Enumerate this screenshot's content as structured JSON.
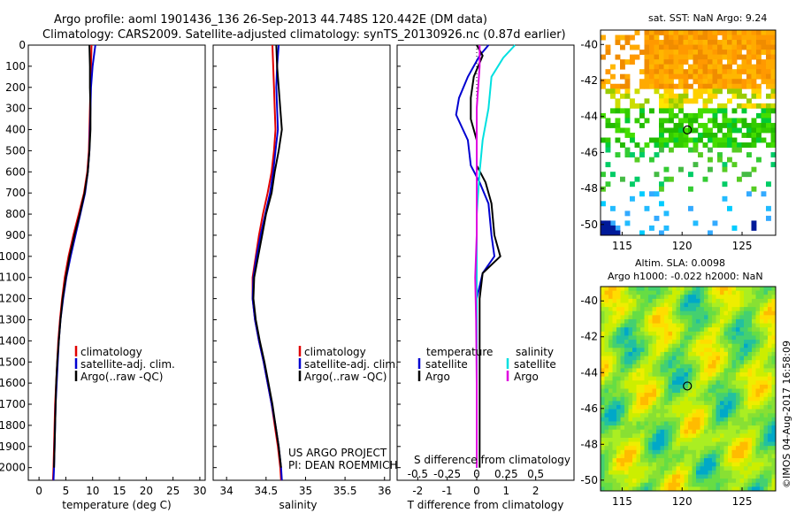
{
  "header": {
    "line1": "Argo profile: aoml 1901436_136 26-Sep-2013 44.748S 120.442E (DM data)",
    "line2": "Climatology: CARS2009. Satellite-adjusted climatology: synTS_20130926.nc (0.87d earlier)"
  },
  "depth_ticks": [
    "0",
    "100",
    "200",
    "300",
    "400",
    "500",
    "600",
    "700",
    "800",
    "900",
    "1000",
    "1100",
    "1200",
    "1300",
    "1400",
    "1500",
    "1600",
    "1700",
    "1800",
    "1900",
    "2000"
  ],
  "project": {
    "line1": "US ARGO PROJECT",
    "line2": "PI: DEAN ROEMMICH"
  },
  "timestamp": "©IMOS 04-Aug-2017 16:58:09",
  "colors": {
    "climatology": "#e00000",
    "satellite": "#0000d0",
    "argo": "#000000",
    "sal_satellite": "#00e0e0",
    "sal_argo": "#e000e0"
  },
  "chart_data": [
    {
      "type": "line",
      "name": "temperature-profile",
      "xlabel": "temperature (deg C)",
      "x_ticks": [
        "0",
        "5",
        "10",
        "15",
        "20",
        "25",
        "30"
      ],
      "xlim": [
        -2,
        31
      ],
      "ylim": [
        2060,
        0
      ],
      "legend": [
        "climatology",
        "satellite-adj. clim.",
        "Argo(..raw -QC)"
      ],
      "series": [
        {
          "name": "climatology",
          "points": [
            [
              9.8,
              0
            ],
            [
              9.7,
              100
            ],
            [
              9.6,
              200
            ],
            [
              9.5,
              300
            ],
            [
              9.4,
              400
            ],
            [
              9.3,
              500
            ],
            [
              9.0,
              600
            ],
            [
              8.4,
              700
            ],
            [
              7.4,
              800
            ],
            [
              6.4,
              900
            ],
            [
              5.5,
              1000
            ],
            [
              4.8,
              1100
            ],
            [
              4.3,
              1200
            ],
            [
              3.9,
              1300
            ],
            [
              3.6,
              1400
            ],
            [
              3.4,
              1500
            ],
            [
              3.2,
              1600
            ],
            [
              3.0,
              1700
            ],
            [
              2.9,
              1800
            ],
            [
              2.8,
              1900
            ],
            [
              2.7,
              2000
            ],
            [
              2.6,
              2060
            ]
          ]
        },
        {
          "name": "satellite-adj. clim.",
          "points": [
            [
              10.5,
              0
            ],
            [
              10.0,
              100
            ],
            [
              9.7,
              200
            ],
            [
              9.6,
              300
            ],
            [
              9.5,
              400
            ],
            [
              9.4,
              500
            ],
            [
              9.1,
              600
            ],
            [
              8.6,
              700
            ],
            [
              7.7,
              800
            ],
            [
              6.8,
              900
            ],
            [
              5.9,
              1000
            ],
            [
              5.1,
              1100
            ],
            [
              4.5,
              1200
            ],
            [
              4.0,
              1300
            ],
            [
              3.7,
              1400
            ],
            [
              3.5,
              1500
            ],
            [
              3.3,
              1600
            ],
            [
              3.1,
              1700
            ],
            [
              3.0,
              1800
            ],
            [
              2.9,
              1900
            ],
            [
              2.8,
              2000
            ],
            [
              2.7,
              2060
            ]
          ]
        },
        {
          "name": "Argo(..raw -QC)",
          "points": [
            [
              9.4,
              0
            ],
            [
              9.5,
              100
            ],
            [
              9.5,
              200
            ],
            [
              9.6,
              300
            ],
            [
              9.6,
              400
            ],
            [
              9.4,
              500
            ],
            [
              9.1,
              600
            ],
            [
              8.5,
              700
            ],
            [
              7.6,
              800
            ],
            [
              6.6,
              900
            ],
            [
              5.7,
              1000
            ],
            [
              5.0,
              1100
            ],
            [
              4.4,
              1200
            ],
            [
              4.0,
              1300
            ],
            [
              3.7,
              1400
            ],
            [
              3.4,
              1500
            ],
            [
              3.2,
              1600
            ],
            [
              3.1,
              1700
            ],
            [
              3.0,
              1800
            ],
            [
              2.9,
              1900
            ],
            [
              2.8,
              2000
            ]
          ]
        }
      ]
    },
    {
      "type": "line",
      "name": "salinity-profile",
      "xlabel": "salinity",
      "x_ticks": [
        "34",
        "34.5",
        "35",
        "35.5",
        "36"
      ],
      "xlim": [
        33.83,
        36.07
      ],
      "ylim": [
        2060,
        0
      ],
      "legend": [
        "climatology",
        "satellite-adj. clim.",
        "Argo(..raw -QC)"
      ],
      "series": [
        {
          "name": "climatology",
          "points": [
            [
              34.58,
              0
            ],
            [
              34.59,
              100
            ],
            [
              34.6,
              200
            ],
            [
              34.61,
              300
            ],
            [
              34.62,
              400
            ],
            [
              34.6,
              500
            ],
            [
              34.57,
              600
            ],
            [
              34.52,
              700
            ],
            [
              34.46,
              800
            ],
            [
              34.41,
              900
            ],
            [
              34.37,
              1000
            ],
            [
              34.33,
              1100
            ],
            [
              34.33,
              1200
            ],
            [
              34.36,
              1300
            ],
            [
              34.41,
              1400
            ],
            [
              34.47,
              1500
            ],
            [
              34.52,
              1600
            ],
            [
              34.57,
              1700
            ],
            [
              34.61,
              1800
            ],
            [
              34.65,
              1900
            ],
            [
              34.68,
              2000
            ],
            [
              34.69,
              2060
            ]
          ]
        },
        {
          "name": "satellite-adj. clim.",
          "points": [
            [
              34.66,
              0
            ],
            [
              34.64,
              100
            ],
            [
              34.63,
              200
            ],
            [
              34.64,
              300
            ],
            [
              34.65,
              400
            ],
            [
              34.62,
              500
            ],
            [
              34.59,
              600
            ],
            [
              34.55,
              700
            ],
            [
              34.49,
              800
            ],
            [
              34.43,
              900
            ],
            [
              34.38,
              1000
            ],
            [
              34.34,
              1100
            ],
            [
              34.33,
              1200
            ],
            [
              34.36,
              1300
            ],
            [
              34.41,
              1400
            ],
            [
              34.47,
              1500
            ],
            [
              34.52,
              1600
            ],
            [
              34.57,
              1700
            ],
            [
              34.62,
              1800
            ],
            [
              34.66,
              1900
            ],
            [
              34.69,
              2000
            ],
            [
              34.7,
              2060
            ]
          ]
        },
        {
          "name": "Argo(..raw -QC)",
          "points": [
            [
              34.63,
              0
            ],
            [
              34.64,
              100
            ],
            [
              34.66,
              200
            ],
            [
              34.68,
              300
            ],
            [
              34.7,
              400
            ],
            [
              34.66,
              500
            ],
            [
              34.61,
              600
            ],
            [
              34.57,
              700
            ],
            [
              34.5,
              800
            ],
            [
              34.45,
              900
            ],
            [
              34.4,
              1000
            ],
            [
              34.35,
              1100
            ],
            [
              34.34,
              1200
            ],
            [
              34.37,
              1300
            ],
            [
              34.42,
              1400
            ],
            [
              34.48,
              1500
            ],
            [
              34.53,
              1600
            ],
            [
              34.58,
              1700
            ],
            [
              34.62,
              1800
            ],
            [
              34.66,
              1900
            ],
            [
              34.69,
              2000
            ]
          ]
        }
      ]
    },
    {
      "type": "line",
      "name": "difference-profile",
      "xlabel": "T difference from climatology",
      "xlabel_top": "S difference from climatology",
      "t_ticks": [
        "-2",
        "-1",
        "0",
        "1",
        "2"
      ],
      "s_ticks": [
        "-0.5",
        "-0.25",
        "0",
        "0.25",
        "0.5"
      ],
      "t_lim": [
        -2.7,
        3.3
      ],
      "ylim": [
        2060,
        0
      ],
      "legend_temperature_title": "temperature",
      "legend_salinity_title": "salinity",
      "legend_temperature": [
        "satellite",
        "Argo"
      ],
      "legend_salinity": [
        "satellite",
        "Argo"
      ],
      "series": [
        {
          "name": "T satellite",
          "points": [
            [
              0.4,
              0
            ],
            [
              0.1,
              50
            ],
            [
              -0.3,
              150
            ],
            [
              -0.6,
              250
            ],
            [
              -0.7,
              330
            ],
            [
              -0.3,
              450
            ],
            [
              -0.2,
              570
            ],
            [
              0.1,
              650
            ],
            [
              0.4,
              750
            ],
            [
              0.5,
              900
            ],
            [
              0.6,
              1000
            ],
            [
              0.2,
              1080
            ],
            [
              0.0,
              1200
            ],
            [
              0.0,
              1400
            ],
            [
              0.0,
              1600
            ],
            [
              0.0,
              2000
            ]
          ]
        },
        {
          "name": "T Argo",
          "points": [
            [
              0.0,
              0
            ],
            [
              0.2,
              50
            ],
            [
              -0.1,
              150
            ],
            [
              -0.2,
              250
            ],
            [
              -0.2,
              350
            ],
            [
              0.0,
              450
            ],
            [
              0.0,
              570
            ],
            [
              0.3,
              650
            ],
            [
              0.5,
              750
            ],
            [
              0.6,
              900
            ],
            [
              0.8,
              1000
            ],
            [
              0.2,
              1080
            ],
            [
              0.1,
              1200
            ],
            [
              0.1,
              1400
            ],
            [
              0.1,
              1600
            ],
            [
              0.1,
              2000
            ]
          ]
        },
        {
          "name": "S satellite",
          "points": [
            [
              1.3,
              0
            ],
            [
              0.9,
              60
            ],
            [
              0.5,
              150
            ],
            [
              0.4,
              300
            ],
            [
              0.2,
              450
            ],
            [
              0.1,
              600
            ],
            [
              0.0,
              800
            ],
            [
              0.0,
              1000
            ],
            [
              0.0,
              2000
            ]
          ]
        },
        {
          "name": "S Argo",
          "points": [
            [
              0.1,
              0
            ],
            [
              0.1,
              100
            ],
            [
              0.0,
              300
            ],
            [
              0.0,
              600
            ],
            [
              0.0,
              900
            ],
            [
              -0.05,
              1100
            ],
            [
              -0.02,
              1300
            ],
            [
              0.0,
              1600
            ],
            [
              0.0,
              2000
            ]
          ]
        }
      ]
    },
    {
      "type": "heatmap",
      "name": "sst-map",
      "title": "sat. SST: NaN Argo: 9.24",
      "x_ticks": [
        "115",
        "120",
        "125"
      ],
      "y_ticks": [
        "-40",
        "-42",
        "-44",
        "-46",
        "-48",
        "-50"
      ],
      "xlim": [
        113.2,
        127.8
      ],
      "ylim": [
        -50.6,
        -39.2
      ],
      "argo_position": {
        "lon": 120.442,
        "lat": -44.748
      }
    },
    {
      "type": "heatmap",
      "name": "sla-map",
      "title_line1": "Altim. SLA: 0.0098",
      "title_line2": "Argo h1000: -0.022 h2000: NaN",
      "x_ticks": [
        "115",
        "120",
        "125"
      ],
      "y_ticks": [
        "-40",
        "-42",
        "-44",
        "-46",
        "-48",
        "-50"
      ],
      "xlim": [
        113.2,
        127.8
      ],
      "ylim": [
        -50.6,
        -39.2
      ],
      "argo_position": {
        "lon": 120.442,
        "lat": -44.748
      }
    }
  ]
}
